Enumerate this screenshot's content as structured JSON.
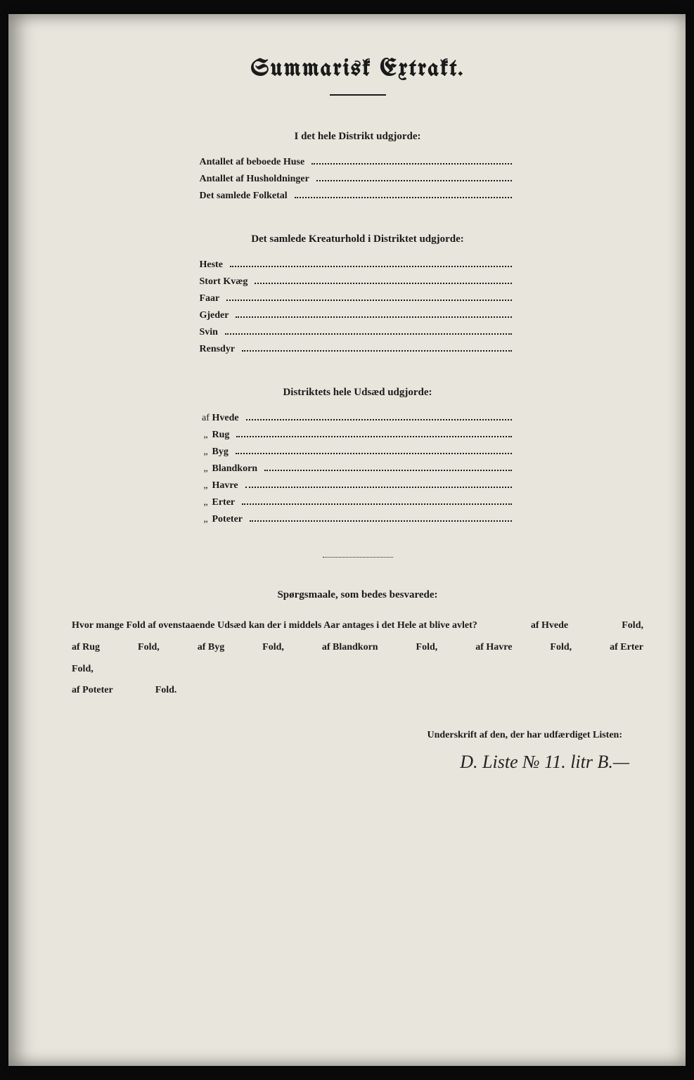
{
  "title": "Summarisk Extrakt.",
  "section1": {
    "heading": "I det hele Distrikt udgjorde:",
    "rows": [
      "Antallet af beboede Huse",
      "Antallet af Husholdninger",
      "Det samlede Folketal"
    ]
  },
  "section2": {
    "heading": "Det samlede Kreaturhold i Distriktet udgjorde:",
    "rows": [
      "Heste",
      "Stort Kvæg",
      "Faar",
      "Gjeder",
      "Svin",
      "Rensdyr"
    ]
  },
  "section3": {
    "heading": "Distriktets hele Udsæd udgjorde:",
    "prefix_first": "af",
    "prefix_ditto": "„",
    "rows": [
      "Hvede",
      "Rug",
      "Byg",
      "Blandkorn",
      "Havre",
      "Erter",
      "Poteter"
    ]
  },
  "section4": {
    "heading": "Spørgsmaale, som bedes besvarede:",
    "question_lead": "Hvor mange Fold af ovenstaaende Udsæd kan der i middels Aar antages i det Hele at blive avlet?",
    "pairs": [
      {
        "label": "af Hvede",
        "unit": "Fold,"
      },
      {
        "label": "af Rug",
        "unit": "Fold,"
      },
      {
        "label": "af Byg",
        "unit": "Fold,"
      },
      {
        "label": "af Blandkorn",
        "unit": "Fold,"
      },
      {
        "label": "af Havre",
        "unit": "Fold,"
      },
      {
        "label": "af Erter",
        "unit": "Fold,"
      },
      {
        "label": "af Poteter",
        "unit": "Fold."
      }
    ]
  },
  "signature_label": "Underskrift af den, der har udfærdiget Listen:",
  "signature": "D. Liste № 11. litr B.—",
  "colors": {
    "paper": "#e8e6dc",
    "ink": "#1a1a1a",
    "frame": "#0a0a0a"
  }
}
